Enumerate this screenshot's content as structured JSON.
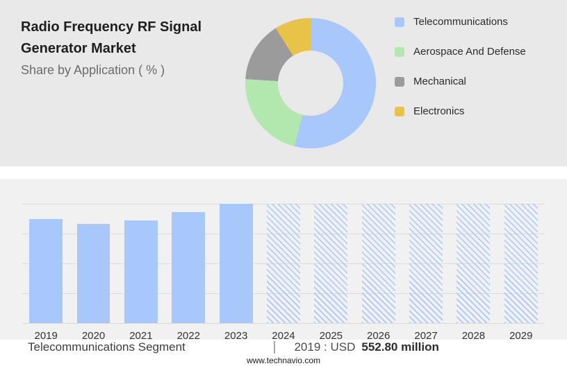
{
  "header": {
    "title": "Radio Frequency RF Signal Generator Market",
    "subtitle": "Share by Application ( % )"
  },
  "chart_data": [
    {
      "type": "pie",
      "donut": true,
      "title": "Share by Application ( % )",
      "labels": [
        "Telecommunications",
        "Aerospace And Defense",
        "Mechanical",
        "Electronics"
      ],
      "values": [
        54,
        22,
        15,
        9
      ],
      "colors": [
        "#a8c7fa",
        "#b2e8ae",
        "#9b9b9b",
        "#e9c248"
      ],
      "legend_position": "right",
      "note": "segment percentages estimated from arc angles; no numeric labels shown"
    },
    {
      "type": "bar",
      "title": "Telecommunications Segment",
      "unit": "USD million",
      "categories": [
        "2019",
        "2020",
        "2021",
        "2022",
        "2023",
        "2024",
        "2025",
        "2026",
        "2027",
        "2028",
        "2029"
      ],
      "values": [
        552.8,
        528,
        547,
        591,
        636,
        null,
        null,
        null,
        null,
        null,
        null
      ],
      "heights_pct": [
        87,
        83,
        86,
        93,
        100,
        100,
        100,
        100,
        100,
        100,
        100
      ],
      "forecast_flags": [
        false,
        false,
        false,
        false,
        false,
        true,
        true,
        true,
        true,
        true,
        true
      ],
      "bar_color": "#a8c7fa",
      "grid": true,
      "note": "only 2019 value labeled (USD 552.80 million); 2020-2023 estimated from bar heights; 2024-2029 shown as hatched forecast bars"
    }
  ],
  "caption": {
    "left": "Telecommunications Segment",
    "divider": "|",
    "right_prefix": "2019 : USD",
    "right_value": "552.80 million"
  },
  "footer": {
    "text": "www.technavio.com"
  }
}
